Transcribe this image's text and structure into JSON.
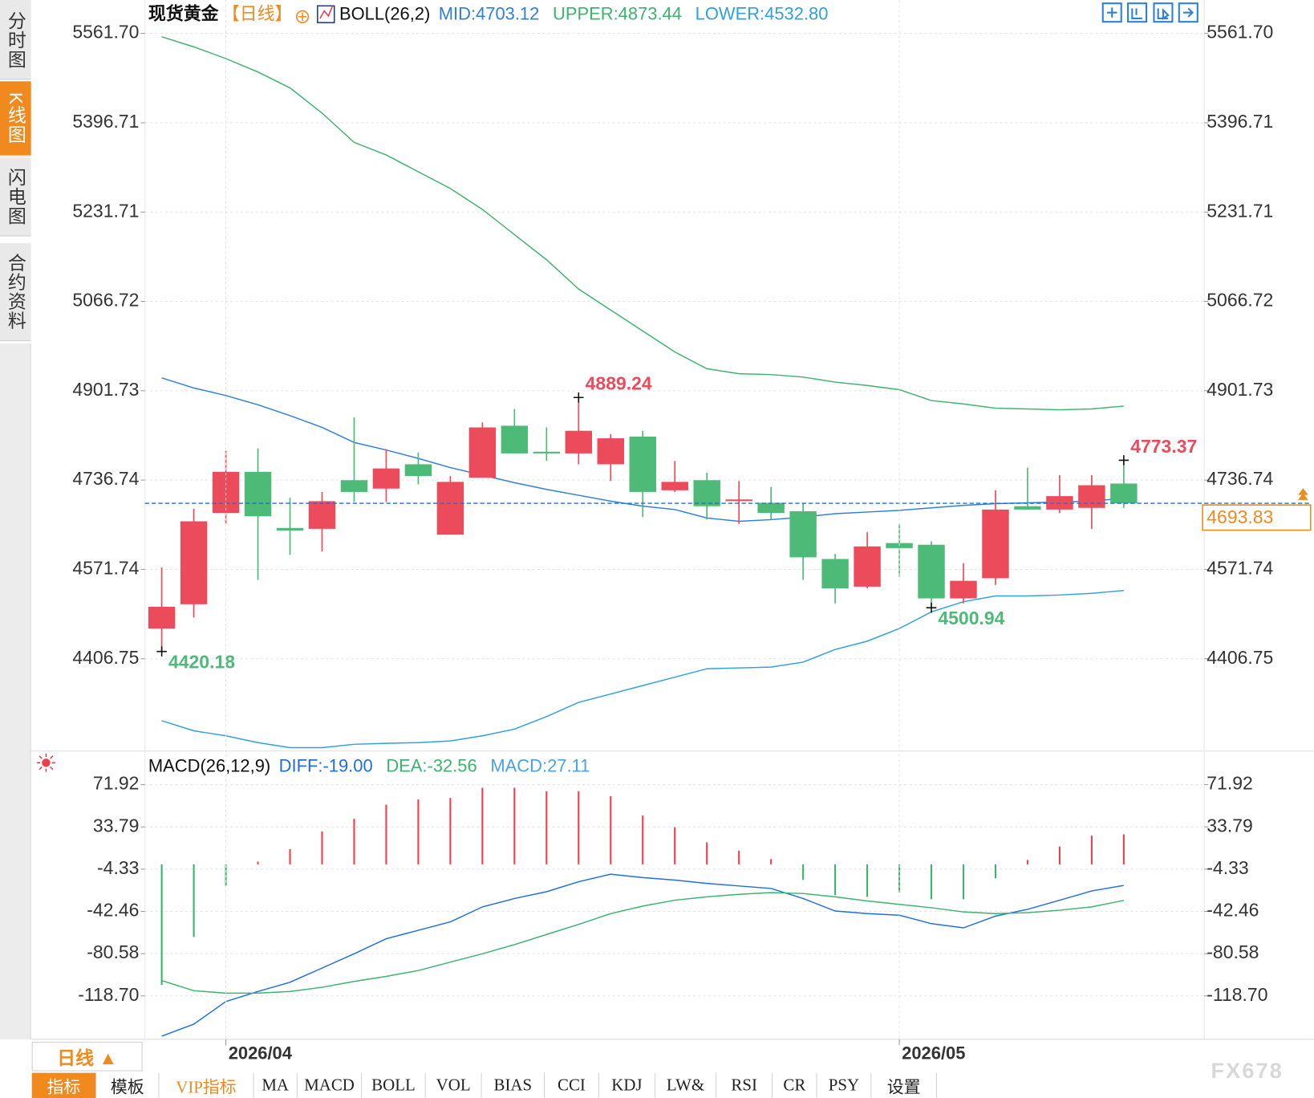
{
  "sidebar": [
    "分时图",
    "K线图",
    "闪电图",
    "合约资料"
  ],
  "period_button": "日线 ▲",
  "toolbar": [
    "指标",
    "模板",
    "VIP指标",
    "MA",
    "MACD",
    "BOLL",
    "VOL",
    "BIAS",
    "CCI",
    "KDJ",
    "LW&",
    "RSI",
    "CR",
    "PSY",
    "设置"
  ],
  "watermark": "FX678",
  "chart_data": [
    {
      "type": "candlestick",
      "title": "现货黄金",
      "period": "【日线】",
      "indicator": "BOLL(26,2)",
      "open": [
        4462.5,
        4507.4,
        4676.1,
        4752.0,
        4648.3,
        4646.7,
        4736.5,
        4721.0,
        4765.9,
        4635.9,
        4741.1,
        4837.1,
        4789.1,
        4786.0,
        4765.9,
        4817.0,
        4717.9,
        4736.5,
        4697.8,
        4694.7,
        4679.2,
        4591.0,
        4539.9,
        4620.4,
        4617.3,
        4518.2,
        4555.4,
        4688.5,
        4682.3,
        4685.4,
        4730.3
      ],
      "high": [
        4575.5,
        4683.9,
        4790.7,
        4795.3,
        4704.0,
        4714.8,
        4852.6,
        4793.8,
        4787.6,
        4744.2,
        4843.3,
        4868.1,
        4834.0,
        4889.24,
        4821.7,
        4827.8,
        4772.1,
        4750.4,
        4735.0,
        4724.1,
        4694.7,
        4600.3,
        4640.5,
        4656.0,
        4623.5,
        4583.2,
        4717.9,
        4759.7,
        4745.8,
        4745.8,
        4773.37
      ],
      "low": [
        4420.18,
        4482.9,
        4656.0,
        4552.3,
        4598.7,
        4604.9,
        4696.2,
        4696.2,
        4728.8,
        4635.9,
        4741.1,
        4786.0,
        4772.1,
        4765.9,
        4735.0,
        4668.4,
        4714.8,
        4663.7,
        4656.0,
        4663.7,
        4552.3,
        4508.9,
        4536.8,
        4558.5,
        4500.94,
        4508.9,
        4543.0,
        4682.3,
        4676.1,
        4646.7,
        4685.4
      ],
      "close": [
        4502.7,
        4660.6,
        4752.0,
        4669.9,
        4643.6,
        4697.8,
        4714.8,
        4758.2,
        4744.2,
        4733.4,
        4834.0,
        4786.0,
        4786.0,
        4827.8,
        4813.9,
        4714.8,
        4733.4,
        4688.5,
        4700.9,
        4676.1,
        4594.1,
        4536.8,
        4614.2,
        4611.1,
        4518.2,
        4550.7,
        4682.3,
        4682.3,
        4707.1,
        4727.2,
        4693.83
      ],
      "high_labels": [
        null,
        null,
        null,
        null,
        null,
        null,
        null,
        null,
        null,
        null,
        null,
        null,
        null,
        "4889.24",
        null,
        null,
        null,
        null,
        null,
        null,
        null,
        null,
        null,
        null,
        null,
        null,
        null,
        null,
        null,
        null,
        "4773.37"
      ],
      "low_labels": [
        "4420.18",
        null,
        null,
        null,
        null,
        null,
        null,
        null,
        null,
        null,
        null,
        null,
        null,
        null,
        null,
        null,
        null,
        null,
        null,
        null,
        null,
        null,
        null,
        null,
        "4500.94",
        null,
        null,
        null,
        null,
        null,
        null
      ],
      "up_color": "#ec4b5b",
      "down_color": "#4dba78",
      "current_price": 4693.83,
      "ylim": [
        4241,
        5577
      ],
      "yticks": [
        {
          "value": 5561.7,
          "label": "5561.70"
        },
        5396.71,
        5231.71,
        5066.72,
        4901.73,
        4736.74,
        4571.74,
        4406.75
      ],
      "grid": true,
      "series": [
        {
          "name": "MID:4703.12",
          "color": "#2d7fe0",
          "values": [
            4925.4,
            4906.8,
            4892.9,
            4875.8,
            4855.7,
            4834.0,
            4806.2,
            4792.2,
            4776.8,
            4759.7,
            4745.8,
            4731.9,
            4719.5,
            4708.6,
            4697.8,
            4688.5,
            4682.3,
            4666.8,
            4660.6,
            4663.7,
            4668.4,
            4674.6,
            4677.7,
            4680.8,
            4685.4,
            4690.1,
            4693.2,
            4694.7,
            4696.2,
            4697.8,
            4703.12
          ]
        },
        {
          "name": "UPPER:4873.44",
          "color": "#3cb46e",
          "values": [
            5555.5,
            5536.9,
            5515.2,
            5490.5,
            5461.1,
            5414.6,
            5360.4,
            5337.2,
            5306.2,
            5275.3,
            5236.6,
            5190.1,
            5143.7,
            5089.5,
            5050.8,
            5012.1,
            4973.4,
            4942.4,
            4933.1,
            4931.6,
            4926.9,
            4917.6,
            4911.4,
            4903.7,
            4883.6,
            4877.4,
            4869.6,
            4868.1,
            4866.6,
            4868.1,
            4873.44
          ]
        },
        {
          "name": "LOWER:4532.80",
          "color": "#2fa0e0",
          "values": [
            4292.2,
            4273.6,
            4264.3,
            4251.9,
            4242.6,
            4242.6,
            4248.8,
            4250.4,
            4251.9,
            4255.0,
            4264.3,
            4276.7,
            4299.9,
            4326.2,
            4341.7,
            4357.2,
            4372.7,
            4388.2,
            4389.7,
            4391.3,
            4400.5,
            4423.8,
            4439.2,
            4462.5,
            4493.4,
            4512.0,
            4522.8,
            4522.8,
            4524.4,
            4527.5,
            4532.8
          ]
        }
      ]
    },
    {
      "type": "macd",
      "title": "MACD(26,12,9)",
      "categories": [
        null,
        null,
        "2026/04",
        null,
        null,
        null,
        null,
        null,
        null,
        null,
        null,
        null,
        null,
        null,
        null,
        null,
        null,
        null,
        null,
        null,
        null,
        null,
        null,
        "2026/05",
        null,
        null,
        null,
        null,
        null,
        null,
        null
      ],
      "ylim": [
        -157.9,
        99.3
      ],
      "yticks": [
        71.92,
        33.79,
        -4.33,
        -42.46,
        -80.58,
        {
          "value": -118.7,
          "label": "-118.70"
        }
      ],
      "grid": true,
      "series": [
        {
          "name": "DIFF:-19.00",
          "color": "#1f6fe0",
          "values": [
            -155.0,
            -144.2,
            -123.8,
            -114.7,
            -106.4,
            -93.6,
            -80.7,
            -67.1,
            -59.5,
            -51.9,
            -38.4,
            -30.8,
            -24.7,
            -15.7,
            -8.9,
            -11.9,
            -14.2,
            -17.2,
            -19.5,
            -21.7,
            -30.8,
            -42.1,
            -44.4,
            -45.9,
            -53.5,
            -57.3,
            -46.7,
            -40.6,
            -32.3,
            -24.0,
            -19.0
          ]
        },
        {
          "name": "DEA:-32.56",
          "color": "#3cb46e",
          "values": [
            -104.9,
            -114.0,
            -116.2,
            -116.2,
            -114.7,
            -110.9,
            -105.6,
            -101.1,
            -95.8,
            -88.2,
            -80.7,
            -72.4,
            -63.3,
            -54.2,
            -44.4,
            -37.6,
            -32.3,
            -29.3,
            -27.0,
            -25.5,
            -26.3,
            -29.3,
            -33.0,
            -36.1,
            -39.1,
            -42.9,
            -44.4,
            -43.6,
            -41.4,
            -38.4,
            -32.56
          ]
        },
        {
          "name": "MACD:27.11",
          "type": "bar",
          "color": "#e8404f",
          "negative_color": "#3cb46e",
          "values": [
            -108.7,
            -65.5,
            -19.4,
            2.5,
            13.8,
            29.7,
            41.1,
            53.9,
            58.5,
            60.0,
            69.1,
            69.1,
            66.0,
            66.0,
            61.5,
            44.1,
            33.5,
            19.9,
            12.3,
            4.8,
            -14.1,
            -27.8,
            -29.3,
            -25.5,
            -31.5,
            -31.5,
            -12.6,
            4.0,
            16.1,
            25.9,
            27.11
          ]
        }
      ]
    }
  ]
}
